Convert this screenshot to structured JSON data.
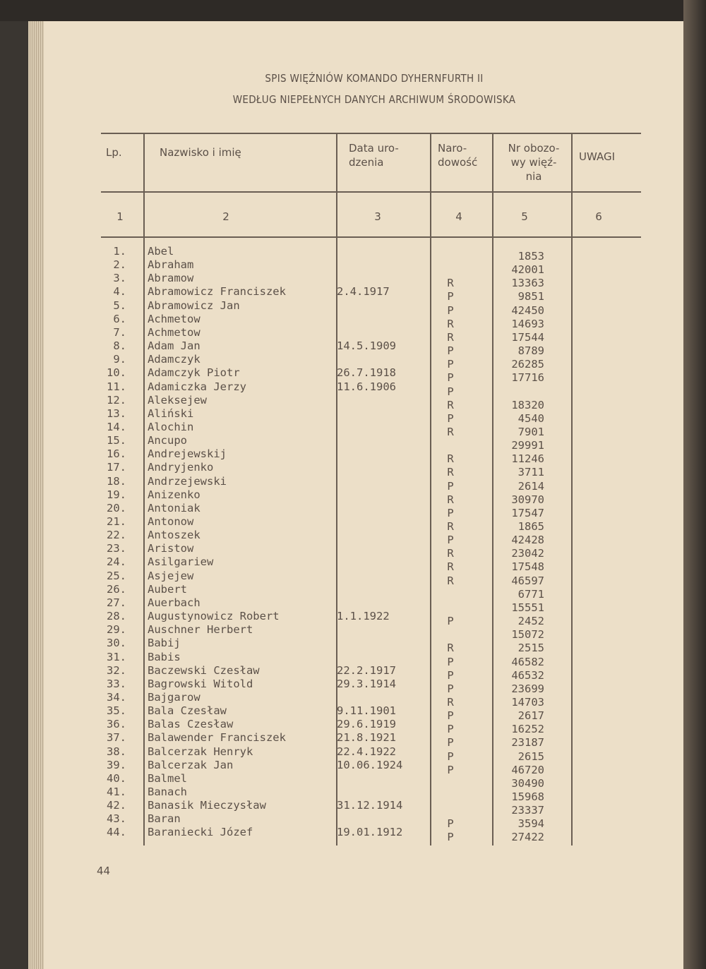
{
  "title": {
    "line1": "SPIS WIĘŹNIÓW KOMANDO DYHERNFURTH II",
    "line2": "WEDŁUG NIEPEŁNYCH DANYCH  ARCHIWUM ŚRODOWISKA"
  },
  "table": {
    "headers": [
      "Lp.",
      "Nazwisko i imię",
      "Data uro-\ndzenia",
      "Naro-\ndowość",
      "Nr obozo-\nwy więź-\nnia",
      "UWAGI"
    ],
    "column_numbers": [
      "1",
      "2",
      "3",
      "4",
      "5",
      "6"
    ],
    "rows": [
      [
        "1.",
        "Abel",
        "",
        "",
        "1853"
      ],
      [
        "2.",
        "Abraham",
        "",
        "",
        "42001"
      ],
      [
        "3.",
        "Abramow",
        "",
        "R",
        "13363"
      ],
      [
        "4.",
        "Abramowicz Franciszek",
        "2.4.1917",
        "P",
        "9851"
      ],
      [
        "5.",
        "Abramowicz Jan",
        "",
        "P",
        "42450"
      ],
      [
        "6.",
        "Achmetow",
        "",
        "R",
        "14693"
      ],
      [
        "7.",
        "Achmetow",
        "",
        "R",
        "17544"
      ],
      [
        "8.",
        "Adam Jan",
        "14.5.1909",
        "P",
        "8789"
      ],
      [
        "9.",
        "Adamczyk",
        "",
        "P",
        "26285"
      ],
      [
        "10.",
        "Adamczyk Piotr",
        "26.7.1918",
        "P",
        "17716"
      ],
      [
        "11.",
        "Adamiczka Jerzy",
        "11.6.1906",
        "P",
        ""
      ],
      [
        "12.",
        "Aleksejew",
        "",
        "R",
        "18320"
      ],
      [
        "13.",
        "Aliński",
        "",
        "P",
        "4540"
      ],
      [
        "14.",
        "Alochin",
        "",
        "R",
        "7901"
      ],
      [
        "15.",
        "Ancupo",
        "",
        "",
        "29991"
      ],
      [
        "16.",
        "Andrejewskij",
        "",
        "R",
        "11246"
      ],
      [
        "17.",
        "Andryjenko",
        "",
        "R",
        "3711"
      ],
      [
        "18.",
        "Andrzejewski",
        "",
        "P",
        "2614"
      ],
      [
        "19.",
        "Anizenko",
        "",
        "R",
        "30970"
      ],
      [
        "20.",
        "Antoniak",
        "",
        "P",
        "17547"
      ],
      [
        "21.",
        "Antonow",
        "",
        "R",
        "1865"
      ],
      [
        "22.",
        "Antoszek",
        "",
        "P",
        "42428"
      ],
      [
        "23.",
        "Aristow",
        "",
        "R",
        "23042"
      ],
      [
        "24.",
        "Asilgariew",
        "",
        "R",
        "17548"
      ],
      [
        "25.",
        "Asjejew",
        "",
        "R",
        "46597"
      ],
      [
        "26.",
        "Aubert",
        "",
        "",
        "6771"
      ],
      [
        "27.",
        "Auerbach",
        "",
        "",
        "15551"
      ],
      [
        "28.",
        "Augustynowicz Robert",
        "1.1.1922",
        "P",
        "2452"
      ],
      [
        "29.",
        "Auschner Herbert",
        "",
        "",
        "15072"
      ],
      [
        "30.",
        "Babij",
        "",
        "R",
        "2515"
      ],
      [
        "31.",
        "Babis",
        "",
        "P",
        "46582"
      ],
      [
        "32.",
        "Baczewski Czesław",
        "22.2.1917",
        "P",
        "46532"
      ],
      [
        "33.",
        "Bagrowski Witold",
        "29.3.1914",
        "P",
        "23699"
      ],
      [
        "34.",
        "Bajgarow",
        "",
        "R",
        "14703"
      ],
      [
        "35.",
        "Bala Czesław",
        "9.11.1901",
        "P",
        "2617"
      ],
      [
        "36.",
        "Balas Czesław",
        "29.6.1919",
        "P",
        "16252"
      ],
      [
        "37.",
        "Balawender Franciszek",
        "21.8.1921",
        "P",
        "23187"
      ],
      [
        "38.",
        "Balcerzak Henryk",
        "22.4.1922",
        "P",
        "2615"
      ],
      [
        "39.",
        "Balcerzak Jan",
        "10.06.1924",
        "P",
        "46720"
      ],
      [
        "40.",
        "Balmel",
        "",
        "",
        "30490"
      ],
      [
        "41.",
        "Banach",
        "",
        "",
        "15968"
      ],
      [
        "42.",
        "Banasik Mieczysław",
        "31.12.1914",
        "",
        "23337"
      ],
      [
        "43.",
        "Baran",
        "",
        "P",
        "3594"
      ],
      [
        "44.",
        "Baraniecki Józef",
        "19.01.1912",
        "P",
        "27422"
      ]
    ]
  },
  "page_number": "44"
}
